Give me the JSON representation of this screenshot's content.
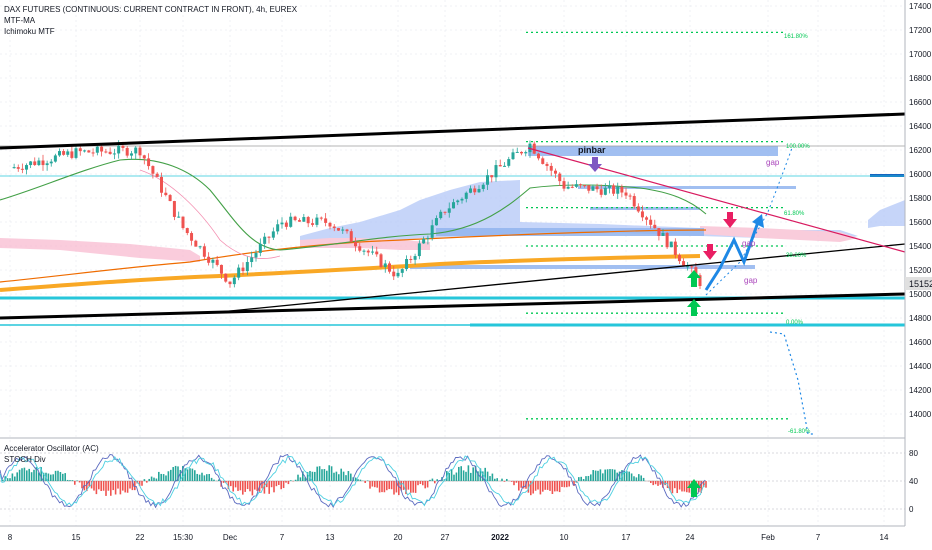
{
  "header": {
    "title": "DAX FUTURES (CONTINUOUS: CURRENT CONTRACT IN FRONT), 4h, EUREX",
    "indicators": [
      "MTF-MA",
      "Ichimoku MTF"
    ]
  },
  "oscillator": {
    "title": "Accelerator Oscillator (AC)",
    "subtitle": "STOCH Div",
    "ticks": [
      "80",
      "40",
      "0"
    ]
  },
  "price_axis": {
    "ticks": [
      "17400",
      "17200",
      "17000",
      "16800",
      "16600",
      "16400",
      "16200",
      "16000",
      "15800",
      "15600",
      "15400",
      "15200",
      "15000",
      "14800",
      "14600",
      "14400",
      "14200",
      "14000"
    ],
    "last_price": "15152"
  },
  "time_axis": {
    "ticks": [
      "8",
      "15",
      "22",
      "15:30",
      "Dec",
      "7",
      "13",
      "20",
      "27",
      "2022",
      "10",
      "17",
      "24",
      "Feb",
      "7",
      "14"
    ]
  },
  "annotations": {
    "pinbar": "pinbar",
    "gap_top": "gap",
    "gap_mid": "gap",
    "gap_low": "gap",
    "fib_1618": "161.80%",
    "fib_100": "100.00%",
    "fib_618": "61.80%",
    "fib_382": "38.20%",
    "fib_0": "0.00%",
    "fib_neg618": "-61.80%"
  },
  "colors": {
    "bull": "#26a69a",
    "bear": "#ef5350",
    "trend": "#000000",
    "cyan": "#26c6da",
    "fib": "#00c853",
    "ichimoku_bear": "#f8bbd0",
    "ichimoku_bull": "#b3c7f7",
    "ma_orange": "#f9a825",
    "ma_green": "#43a047",
    "projection": "#1565c0",
    "pink_line": "#d81b60"
  },
  "chart_data": {
    "type": "candlestick",
    "instrument": "DAX FUTURES (CONTINUOUS: CURRENT CONTRACT IN FRONT)",
    "timeframe": "4h",
    "exchange": "EUREX",
    "ylim": [
      13900,
      17450
    ],
    "last_price": 15152,
    "key_points": [
      {
        "x": "8",
        "y": 16050
      },
      {
        "x": "15",
        "y": 16180
      },
      {
        "x": "22",
        "y": 16200
      },
      {
        "x": "15:30",
        "y": 15550
      },
      {
        "x": "Dec",
        "y": 15100
      },
      {
        "x": "7",
        "y": 15600
      },
      {
        "x": "13",
        "y": 15600
      },
      {
        "x": "20",
        "y": 15150
      },
      {
        "x": "27",
        "y": 15700
      },
      {
        "x": "2022",
        "y": 16250
      },
      {
        "x": "10",
        "y": 15900
      },
      {
        "x": "17",
        "y": 15850
      },
      {
        "x": "24",
        "y": 15100
      }
    ],
    "fib_levels": [
      {
        "label": "161.80%",
        "y": 17180
      },
      {
        "label": "100.00%",
        "y": 16270
      },
      {
        "label": "61.80%",
        "y": 15720
      },
      {
        "label": "38.20%",
        "y": 15400
      },
      {
        "label": "0.00%",
        "y": 14840
      },
      {
        "label": "-61.80%",
        "y": 13960
      }
    ]
  }
}
